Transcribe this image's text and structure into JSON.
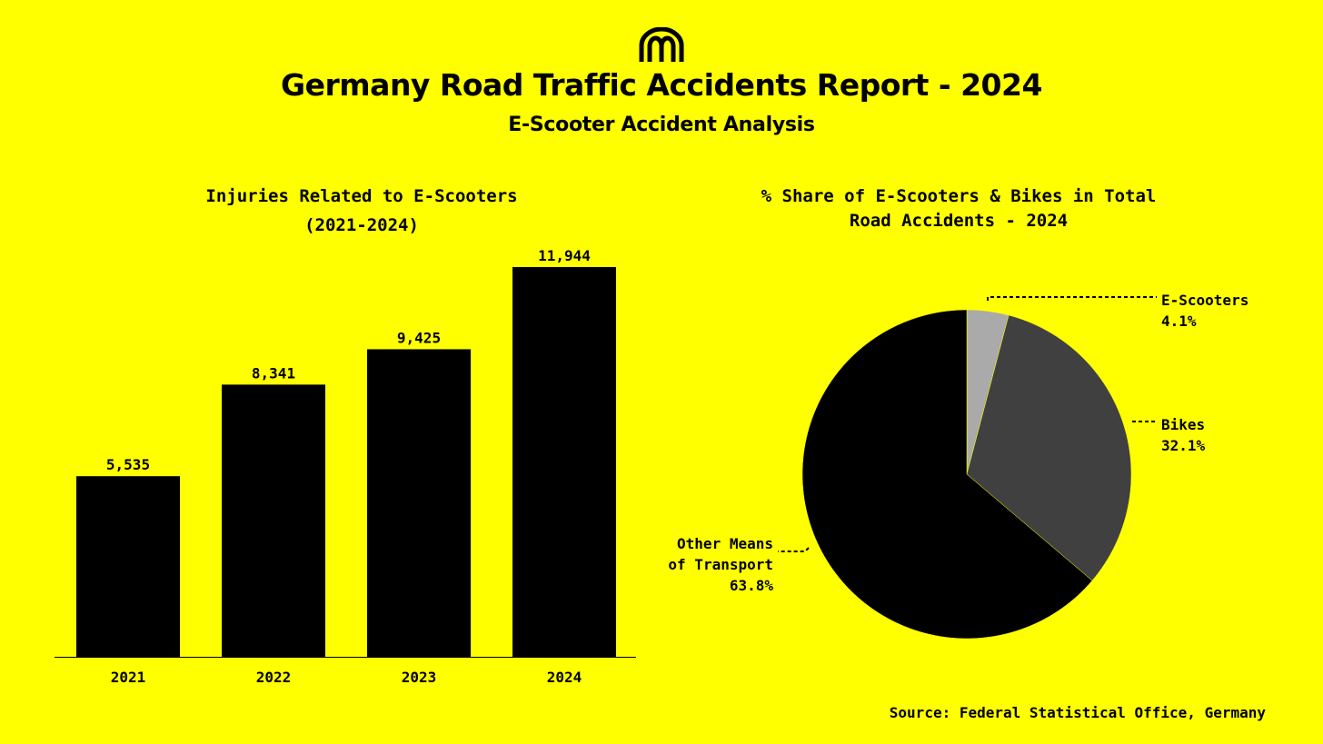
{
  "header": {
    "logo_icon": "m-arches-logo-icon",
    "title": "Germany Road Traffic Accidents Report - 2024",
    "subtitle": "E-Scooter Accident Analysis"
  },
  "chart_data": [
    {
      "type": "bar",
      "title_line1": "Injuries Related to E-Scooters",
      "title_line2": "(2021-2024)",
      "categories": [
        "2021",
        "2022",
        "2023",
        "2024"
      ],
      "values": [
        5535,
        8341,
        9425,
        11944
      ],
      "value_labels": [
        "5,535",
        "8,341",
        "9,425",
        "11,944"
      ],
      "ylim": [
        0,
        12500
      ],
      "xlabel": "",
      "ylabel": "",
      "bar_color": "#000000"
    },
    {
      "type": "pie",
      "title_line1": "% Share of E-Scooters & Bikes in Total",
      "title_line2": "Road Accidents - 2024",
      "slices": [
        {
          "name": "E-Scooters",
          "label_line1": "E-Scooters",
          "label_line2": "",
          "pct_label": "4.1%",
          "value": 4.1,
          "color": "#AAAAAA"
        },
        {
          "name": "Bikes",
          "label_line1": "Bikes",
          "label_line2": "",
          "pct_label": "32.1%",
          "value": 32.1,
          "color": "#404040"
        },
        {
          "name": "Other Means of Transport",
          "label_line1": "Other Means",
          "label_line2": "of Transport",
          "pct_label": "63.8%",
          "value": 63.8,
          "color": "#000000"
        }
      ]
    }
  ],
  "footer": {
    "source": "Source: Federal Statistical Office, Germany"
  },
  "colors": {
    "background": "#FFFF00",
    "text": "#000000"
  }
}
